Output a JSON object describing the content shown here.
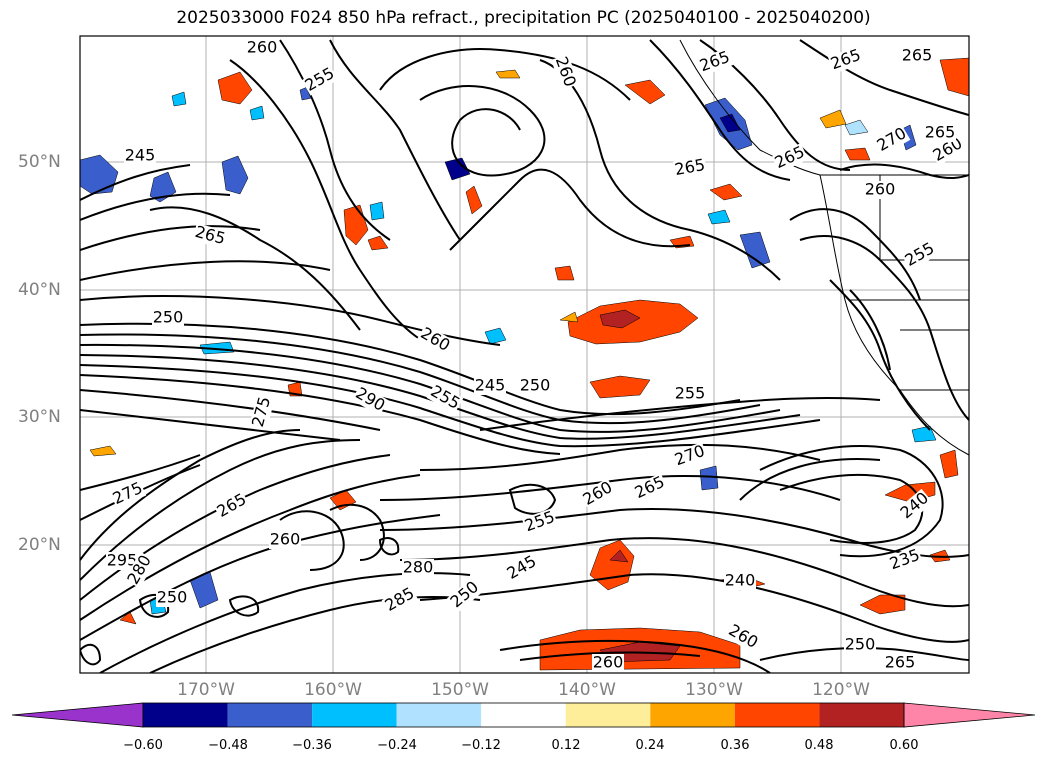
{
  "title": "2025033000 F024 850 hPa refract., precipitation PC (2025040100 - 2025040200)",
  "lat_labels": [
    "50°N",
    "40°N",
    "30°N",
    "20°N"
  ],
  "lon_labels": [
    "170°W",
    "160°W",
    "150°W",
    "140°W",
    "130°W",
    "120°W"
  ],
  "colorbar": {
    "ticks": [
      "−0.60",
      "−0.48",
      "−0.36",
      "−0.24",
      "−0.12",
      "0.12",
      "0.24",
      "0.36",
      "0.48",
      "0.60"
    ],
    "colors": [
      "#9933cc",
      "#00008b",
      "#3a5fcd",
      "#00bfff",
      "#b0e2ff",
      "#ffffff",
      "#ffee99",
      "#ffa500",
      "#ff4500",
      "#b22222",
      "#ff85a8"
    ]
  },
  "contour_labels": [
    "260",
    "255",
    "265",
    "265",
    "265",
    "245",
    "265",
    "265",
    "270",
    "260",
    "265",
    "260",
    "260",
    "255",
    "250",
    "260",
    "245",
    "250",
    "255",
    "290",
    "255",
    "275",
    "275",
    "265",
    "260",
    "265",
    "270",
    "240",
    "295",
    "280",
    "260",
    "255",
    "245",
    "280",
    "250",
    "285",
    "240",
    "235",
    "250",
    "265",
    "260",
    "260",
    "265",
    "250"
  ]
}
